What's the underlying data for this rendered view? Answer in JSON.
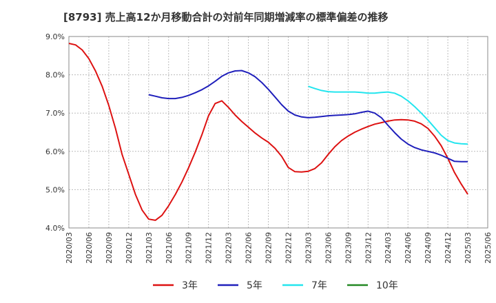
{
  "chart_data": {
    "type": "line",
    "title": "[8793]  売上高12か月移動合計の対前年同期増減率の標準偏差の推移",
    "ylim": [
      4.0,
      9.0
    ],
    "y_ticks": [
      "9.0%",
      "8.0%",
      "7.0%",
      "6.0%",
      "5.0%",
      "4.0%"
    ],
    "y_tick_values": [
      9.0,
      8.0,
      7.0,
      6.0,
      5.0,
      4.0
    ],
    "x_range": [
      "2020/03",
      "2025/06"
    ],
    "x_ticks": [
      "2020/03",
      "2020/06",
      "2020/09",
      "2020/12",
      "2021/03",
      "2021/06",
      "2021/09",
      "2021/12",
      "2022/03",
      "2022/06",
      "2022/09",
      "2022/12",
      "2023/03",
      "2023/06",
      "2023/09",
      "2023/12",
      "2024/03",
      "2024/06",
      "2024/09",
      "2024/12",
      "2025/03",
      "2025/06"
    ],
    "grid": true,
    "legend_position": "bottom",
    "series": [
      {
        "name": "3年",
        "color": "#dd1111",
        "points": [
          [
            "2020/03",
            8.82
          ],
          [
            "2020/04",
            8.78
          ],
          [
            "2020/05",
            8.65
          ],
          [
            "2020/06",
            8.42
          ],
          [
            "2020/07",
            8.1
          ],
          [
            "2020/08",
            7.7
          ],
          [
            "2020/09",
            7.2
          ],
          [
            "2020/10",
            6.6
          ],
          [
            "2020/11",
            5.92
          ],
          [
            "2020/12",
            5.4
          ],
          [
            "2021/01",
            4.88
          ],
          [
            "2021/02",
            4.47
          ],
          [
            "2021/03",
            4.23
          ],
          [
            "2021/04",
            4.2
          ],
          [
            "2021/05",
            4.33
          ],
          [
            "2021/06",
            4.58
          ],
          [
            "2021/07",
            4.87
          ],
          [
            "2021/08",
            5.2
          ],
          [
            "2021/09",
            5.57
          ],
          [
            "2021/10",
            5.98
          ],
          [
            "2021/11",
            6.43
          ],
          [
            "2021/12",
            6.93
          ],
          [
            "2022/01",
            7.25
          ],
          [
            "2022/02",
            7.32
          ],
          [
            "2022/03",
            7.15
          ],
          [
            "2022/04",
            6.95
          ],
          [
            "2022/05",
            6.78
          ],
          [
            "2022/06",
            6.63
          ],
          [
            "2022/07",
            6.48
          ],
          [
            "2022/08",
            6.35
          ],
          [
            "2022/09",
            6.24
          ],
          [
            "2022/10",
            6.08
          ],
          [
            "2022/11",
            5.87
          ],
          [
            "2022/12",
            5.58
          ],
          [
            "2023/01",
            5.47
          ],
          [
            "2023/02",
            5.46
          ],
          [
            "2023/03",
            5.48
          ],
          [
            "2023/04",
            5.55
          ],
          [
            "2023/05",
            5.7
          ],
          [
            "2023/06",
            5.92
          ],
          [
            "2023/07",
            6.12
          ],
          [
            "2023/08",
            6.28
          ],
          [
            "2023/09",
            6.4
          ],
          [
            "2023/10",
            6.5
          ],
          [
            "2023/11",
            6.58
          ],
          [
            "2023/12",
            6.65
          ],
          [
            "2024/01",
            6.71
          ],
          [
            "2024/02",
            6.75
          ],
          [
            "2024/03",
            6.79
          ],
          [
            "2024/04",
            6.82
          ],
          [
            "2024/05",
            6.83
          ],
          [
            "2024/06",
            6.82
          ],
          [
            "2024/07",
            6.79
          ],
          [
            "2024/08",
            6.72
          ],
          [
            "2024/09",
            6.6
          ],
          [
            "2024/10",
            6.4
          ],
          [
            "2024/11",
            6.15
          ],
          [
            "2024/12",
            5.82
          ],
          [
            "2025/01",
            5.45
          ],
          [
            "2025/02",
            5.15
          ],
          [
            "2025/03",
            4.88
          ]
        ]
      },
      {
        "name": "5年",
        "color": "#1f1fbb",
        "points": [
          [
            "2021/03",
            7.48
          ],
          [
            "2021/04",
            7.44
          ],
          [
            "2021/05",
            7.4
          ],
          [
            "2021/06",
            7.38
          ],
          [
            "2021/07",
            7.38
          ],
          [
            "2021/08",
            7.41
          ],
          [
            "2021/09",
            7.46
          ],
          [
            "2021/10",
            7.53
          ],
          [
            "2021/11",
            7.61
          ],
          [
            "2021/12",
            7.71
          ],
          [
            "2022/01",
            7.83
          ],
          [
            "2022/02",
            7.96
          ],
          [
            "2022/03",
            8.05
          ],
          [
            "2022/04",
            8.1
          ],
          [
            "2022/05",
            8.11
          ],
          [
            "2022/06",
            8.05
          ],
          [
            "2022/07",
            7.95
          ],
          [
            "2022/08",
            7.8
          ],
          [
            "2022/09",
            7.62
          ],
          [
            "2022/10",
            7.42
          ],
          [
            "2022/11",
            7.22
          ],
          [
            "2022/12",
            7.05
          ],
          [
            "2023/01",
            6.95
          ],
          [
            "2023/02",
            6.9
          ],
          [
            "2023/03",
            6.88
          ],
          [
            "2023/04",
            6.89
          ],
          [
            "2023/05",
            6.91
          ],
          [
            "2023/06",
            6.93
          ],
          [
            "2023/07",
            6.94
          ],
          [
            "2023/08",
            6.95
          ],
          [
            "2023/09",
            6.96
          ],
          [
            "2023/10",
            6.98
          ],
          [
            "2023/11",
            7.02
          ],
          [
            "2023/12",
            7.05
          ],
          [
            "2024/01",
            7.0
          ],
          [
            "2024/02",
            6.88
          ],
          [
            "2024/03",
            6.68
          ],
          [
            "2024/04",
            6.49
          ],
          [
            "2024/05",
            6.32
          ],
          [
            "2024/06",
            6.19
          ],
          [
            "2024/07",
            6.1
          ],
          [
            "2024/08",
            6.04
          ],
          [
            "2024/09",
            6.0
          ],
          [
            "2024/10",
            5.96
          ],
          [
            "2024/11",
            5.9
          ],
          [
            "2024/12",
            5.82
          ],
          [
            "2025/01",
            5.74
          ],
          [
            "2025/02",
            5.73
          ],
          [
            "2025/03",
            5.73
          ]
        ]
      },
      {
        "name": "7年",
        "color": "#22e5ee",
        "points": [
          [
            "2023/03",
            7.7
          ],
          [
            "2023/04",
            7.64
          ],
          [
            "2023/05",
            7.59
          ],
          [
            "2023/06",
            7.56
          ],
          [
            "2023/07",
            7.55
          ],
          [
            "2023/08",
            7.55
          ],
          [
            "2023/09",
            7.55
          ],
          [
            "2023/10",
            7.55
          ],
          [
            "2023/11",
            7.54
          ],
          [
            "2023/12",
            7.52
          ],
          [
            "2024/01",
            7.52
          ],
          [
            "2024/02",
            7.54
          ],
          [
            "2024/03",
            7.55
          ],
          [
            "2024/04",
            7.52
          ],
          [
            "2024/05",
            7.44
          ],
          [
            "2024/06",
            7.32
          ],
          [
            "2024/07",
            7.17
          ],
          [
            "2024/08",
            7.0
          ],
          [
            "2024/09",
            6.82
          ],
          [
            "2024/10",
            6.62
          ],
          [
            "2024/11",
            6.42
          ],
          [
            "2024/12",
            6.28
          ],
          [
            "2025/01",
            6.22
          ],
          [
            "2025/02",
            6.2
          ],
          [
            "2025/03",
            6.19
          ]
        ]
      },
      {
        "name": "10年",
        "color": "#228822",
        "points": []
      }
    ]
  }
}
